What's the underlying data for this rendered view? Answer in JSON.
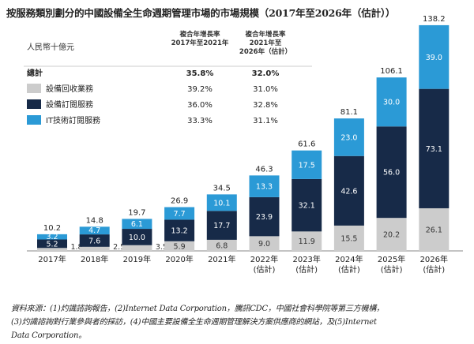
{
  "page": {
    "title": "按服務類別劃分的中國設備全生命週期管理市場的市場規模（2017年至2026年（估計））",
    "source_lines": [
      "資料來源：(1)灼識諮詢報告，(2)Internet Data Corporation，騰訊CDC，中國社會科學院等第三方機構，",
      "(3)灼識諮詢對行業參與者的採訪，(4)中國主要設備全生命週期管理解決方案供應商的網站，及(5)Internet",
      "Data Corporation。"
    ]
  },
  "chart_data": {
    "type": "bar",
    "stacked": true,
    "unit_label": "人民幣十億元",
    "categories": [
      [
        "2017年"
      ],
      [
        "2018年"
      ],
      [
        "2019年"
      ],
      [
        "2020年"
      ],
      [
        "2021年"
      ],
      [
        "2022年",
        "(估計)"
      ],
      [
        "2023年",
        "(估計)"
      ],
      [
        "2024年",
        "(估計)"
      ],
      [
        "2025年",
        "(估計)"
      ],
      [
        "2026年",
        "(估計)"
      ]
    ],
    "series": [
      {
        "name": "設備回收業務",
        "color": "#cccccc",
        "label_color": "#333333",
        "values": [
          1.8,
          2.5,
          3.5,
          5.9,
          6.8,
          9.0,
          11.9,
          15.5,
          20.2,
          26.1
        ]
      },
      {
        "name": "設備訂閱服務",
        "color": "#172a48",
        "label_color": "#ffffff",
        "values": [
          5.2,
          7.6,
          10.0,
          13.2,
          17.7,
          23.9,
          32.1,
          42.6,
          56.0,
          73.1
        ]
      },
      {
        "name": "IT技術訂閱服務",
        "color": "#2b9ad6",
        "label_color": "#ffffff",
        "values": [
          3.2,
          4.7,
          6.1,
          7.7,
          10.1,
          13.3,
          17.5,
          23.0,
          30.0,
          39.0
        ]
      }
    ],
    "totals": [
      10.2,
      14.8,
      19.7,
      26.9,
      34.5,
      46.3,
      61.6,
      81.1,
      106.1,
      138.2
    ],
    "cagr_table": {
      "headers": [
        "複合年增長率\n2017年至2021年",
        "複合年增長率\n2021年至\n2026年（估計）"
      ],
      "rows": [
        {
          "label": "總計",
          "values": [
            "35.8%",
            "32.0%"
          ],
          "bold": true
        },
        {
          "label": "設備回收業務",
          "values": [
            "39.2%",
            "31.0%"
          ]
        },
        {
          "label": "設備訂閱服務",
          "values": [
            "36.0%",
            "32.8%"
          ]
        },
        {
          "label": "IT技術訂閱服務",
          "values": [
            "33.3%",
            "31.1%"
          ]
        }
      ]
    },
    "ylim": [
      0,
      140
    ],
    "grid": false,
    "legend_placement": "top-left"
  }
}
